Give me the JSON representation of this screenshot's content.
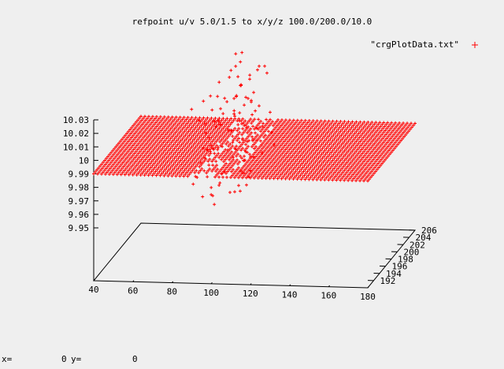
{
  "chart_data": {
    "type": "scatter",
    "title": "refpoint u/v 5.0/1.5 to x/y/z 100.0/200.0/10.0",
    "legend": {
      "label": "\"crgPlotData.txt\"",
      "marker": "+",
      "placement": "top-right"
    },
    "axes": {
      "x": {
        "ticks": [
          40,
          60,
          80,
          100,
          120,
          140,
          160,
          180
        ],
        "range": [
          40,
          180
        ]
      },
      "y": {
        "ticks": [
          192,
          194,
          196,
          198,
          200,
          202,
          204,
          206
        ],
        "range": [
          190,
          206
        ]
      },
      "z": {
        "ticks": [
          "9.95",
          "9.96",
          "9.97",
          "9.98",
          "9.99",
          "10",
          "10.01",
          "10.02",
          "10.03"
        ],
        "range": [
          9.95,
          10.03
        ]
      }
    },
    "series": [
      {
        "color": "#ff0000",
        "marker": "+",
        "surface": {
          "x_range": [
            40,
            180
          ],
          "y_range": [
            190,
            206
          ],
          "z_base": 9.99,
          "z_spike_max": 10.03,
          "spike_region_x": [
            90,
            110
          ]
        }
      }
    ],
    "grid": false
  },
  "status_bar": {
    "x_label": "x=",
    "x_value": "0",
    "y_label": "y=",
    "y_value": "0"
  }
}
